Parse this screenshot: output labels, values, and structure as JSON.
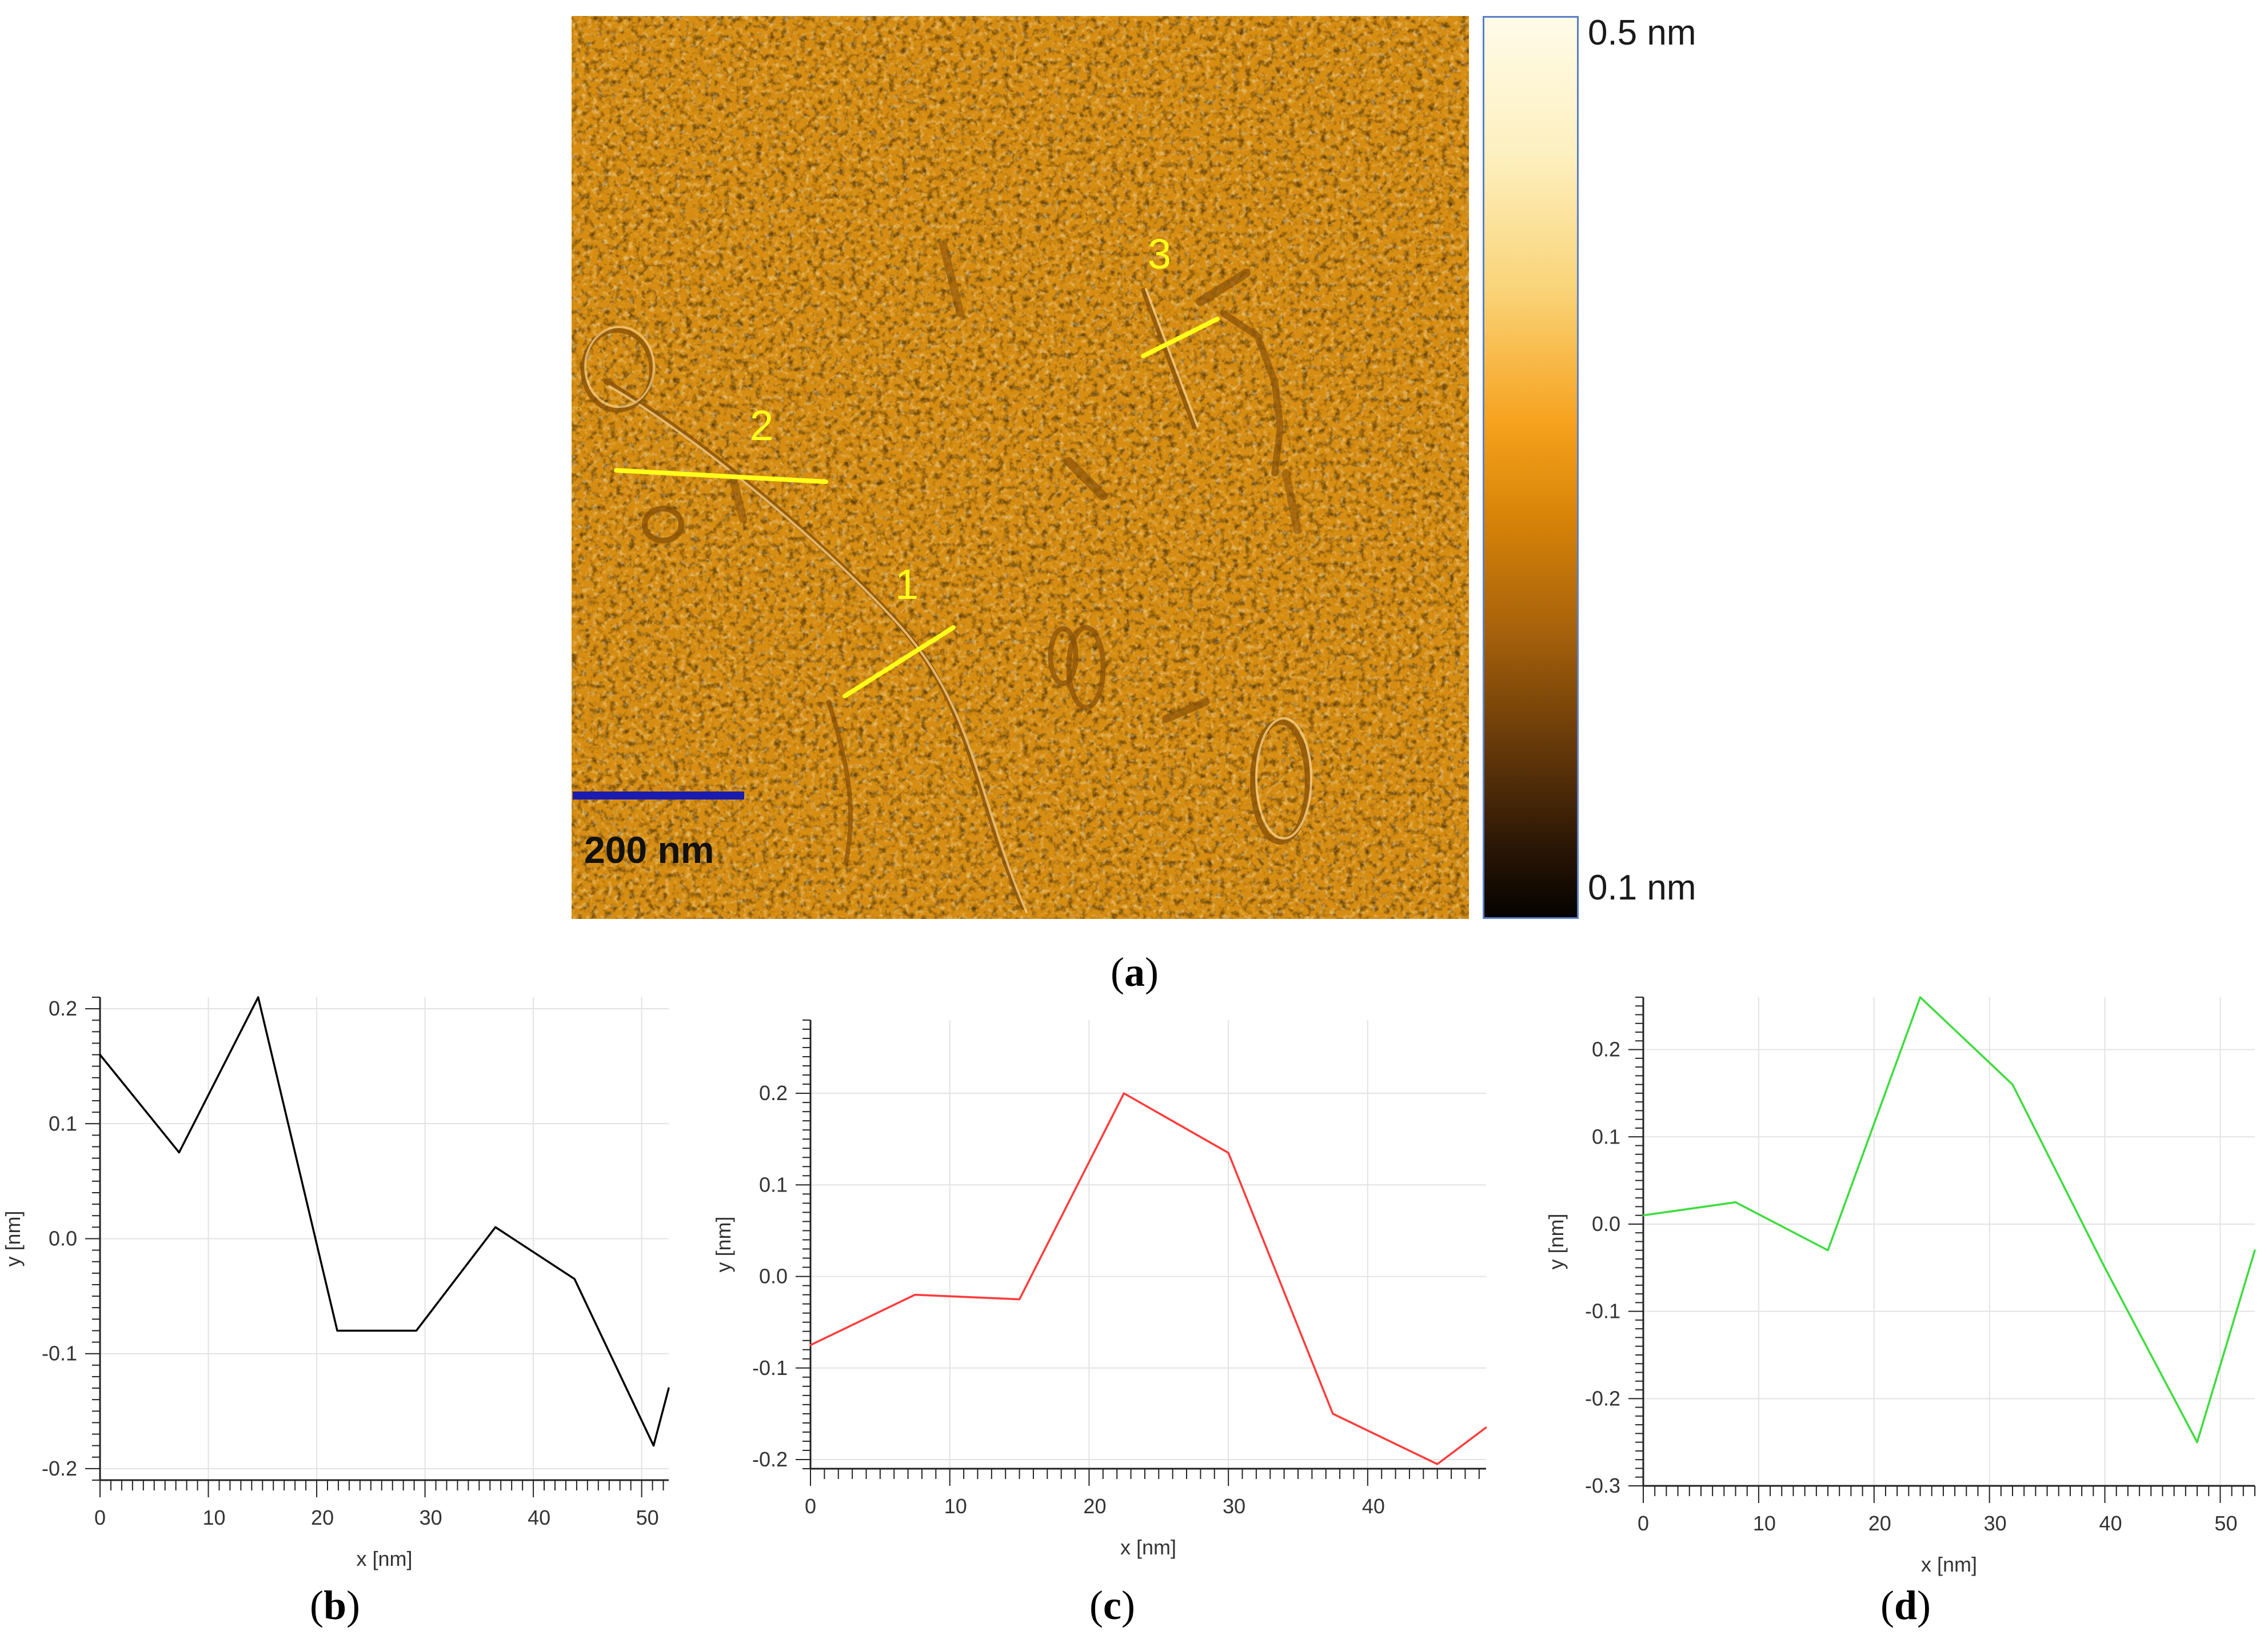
{
  "figure": {
    "image_a": {
      "scale_bar_label": "200 nm",
      "colorbar_top": "0.5 nm",
      "colorbar_bottom": "0.1 nm",
      "profile_markers": [
        "1",
        "2",
        "3"
      ],
      "palette": {
        "base": "#d9900f",
        "profile_line": "#ffff1a",
        "scale_bar": "#1b1bb0"
      }
    },
    "panel_labels": {
      "a": "a",
      "b": "b",
      "c": "c",
      "d": "d"
    }
  },
  "chart_data": [
    {
      "panel": "b",
      "type": "line",
      "color": "#000000",
      "xlabel": "x [nm]",
      "ylabel": "y [nm]",
      "xlim": [
        0,
        52.5
      ],
      "ylim": [
        -0.21,
        0.21
      ],
      "xticks": [
        0,
        10,
        20,
        30,
        40,
        50
      ],
      "yticks": [
        -0.2,
        -0.1,
        0.0,
        0.1,
        0.2
      ],
      "yticklabels": [
        "-0.2",
        "-0.1",
        "0.0",
        "0.1",
        "0.2"
      ],
      "x": [
        0,
        7.3,
        14.6,
        21.9,
        29.2,
        36.5,
        43.8,
        51.1,
        52.5
      ],
      "y": [
        0.16,
        0.075,
        0.21,
        -0.08,
        -0.08,
        0.01,
        -0.035,
        -0.18,
        -0.13
      ]
    },
    {
      "panel": "c",
      "type": "line",
      "color": "#ff3b3b",
      "xlabel": "x [nm]",
      "ylabel": "y [nm]",
      "xlim": [
        0,
        48.5
      ],
      "ylim": [
        -0.21,
        0.28
      ],
      "xticks": [
        0,
        10,
        20,
        30,
        40
      ],
      "yticks": [
        -0.2,
        -0.1,
        0.0,
        0.1,
        0.2
      ],
      "yticklabels": [
        "-0.2",
        "-0.1",
        "0.0",
        "0.1",
        "0.2"
      ],
      "x": [
        0,
        7.5,
        15,
        22.5,
        30,
        37.5,
        45,
        48.5
      ],
      "y": [
        -0.075,
        -0.02,
        -0.025,
        0.2,
        0.135,
        -0.15,
        -0.205,
        -0.165
      ]
    },
    {
      "panel": "d",
      "type": "line",
      "color": "#3ddc3d",
      "xlabel": "x [nm]",
      "ylabel": "y [nm]",
      "xlim": [
        0,
        53
      ],
      "ylim": [
        -0.3,
        0.26
      ],
      "xticks": [
        0,
        10,
        20,
        30,
        40,
        50
      ],
      "yticks": [
        -0.3,
        -0.2,
        -0.1,
        0.0,
        0.1,
        0.2
      ],
      "yticklabels": [
        "-0.3",
        "-0.2",
        "-0.1",
        "0.0",
        "0.1",
        "0.2"
      ],
      "x": [
        0,
        8,
        16,
        24,
        32,
        40,
        48,
        53
      ],
      "y": [
        0.01,
        0.025,
        -0.03,
        0.26,
        0.16,
        -0.05,
        -0.25,
        -0.03
      ]
    }
  ]
}
